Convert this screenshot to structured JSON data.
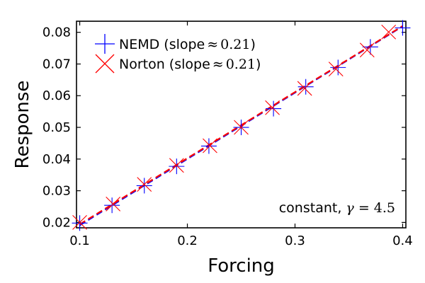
{
  "chart_data": {
    "type": "scatter",
    "xlabel": "Forcing",
    "ylabel": "Response",
    "xlim": [
      0.097,
      0.403
    ],
    "ylim": [
      0.0183,
      0.0835
    ],
    "xticks": [
      0.1,
      0.2,
      0.3,
      0.4
    ],
    "xtick_labels": [
      "0.1",
      "0.2",
      "0.3",
      "0.4"
    ],
    "yticks": [
      0.02,
      0.03,
      0.04,
      0.05,
      0.06,
      0.07,
      0.08
    ],
    "ytick_labels": [
      "0.02",
      "0.03",
      "0.04",
      "0.05",
      "0.06",
      "0.07",
      "0.08"
    ],
    "grid": false,
    "legend_position": "top-left",
    "annotation": {
      "prefix": "constant, ",
      "symbol": "γ",
      "equals": " = ",
      "value": "4.5"
    },
    "series": [
      {
        "name": "NEMD",
        "legend_prefix": "NEMD (slope",
        "legend_approx": "≈",
        "legend_value": "0.21",
        "legend_suffix": ")",
        "color": "#0000ff",
        "marker": "plus",
        "fit_line_style": "dashed",
        "x": [
          0.1,
          0.13,
          0.16,
          0.19,
          0.22,
          0.25,
          0.28,
          0.31,
          0.34,
          0.37,
          0.4
        ],
        "y": [
          0.0198,
          0.0254,
          0.0316,
          0.0377,
          0.0441,
          0.05,
          0.0559,
          0.0628,
          0.0689,
          0.0754,
          0.0814
        ],
        "fit": {
          "x": [
            0.1,
            0.4
          ],
          "y": [
            0.0191,
            0.0819
          ]
        }
      },
      {
        "name": "Norton",
        "legend_prefix": "Norton (slope",
        "legend_approx": "≈",
        "legend_value": "0.21",
        "legend_suffix": ")",
        "color": "#ff0000",
        "marker": "x",
        "fit_line_style": "dashed",
        "x": [
          0.1,
          0.131,
          0.16,
          0.19,
          0.221,
          0.25,
          0.279,
          0.309,
          0.338,
          0.367,
          0.387
        ],
        "y": [
          0.02,
          0.0258,
          0.032,
          0.038,
          0.0442,
          0.05,
          0.0562,
          0.0623,
          0.0684,
          0.0744,
          0.0801
        ],
        "fit": {
          "x": [
            0.1,
            0.4
          ],
          "y": [
            0.0194,
            0.082
          ]
        }
      }
    ]
  }
}
